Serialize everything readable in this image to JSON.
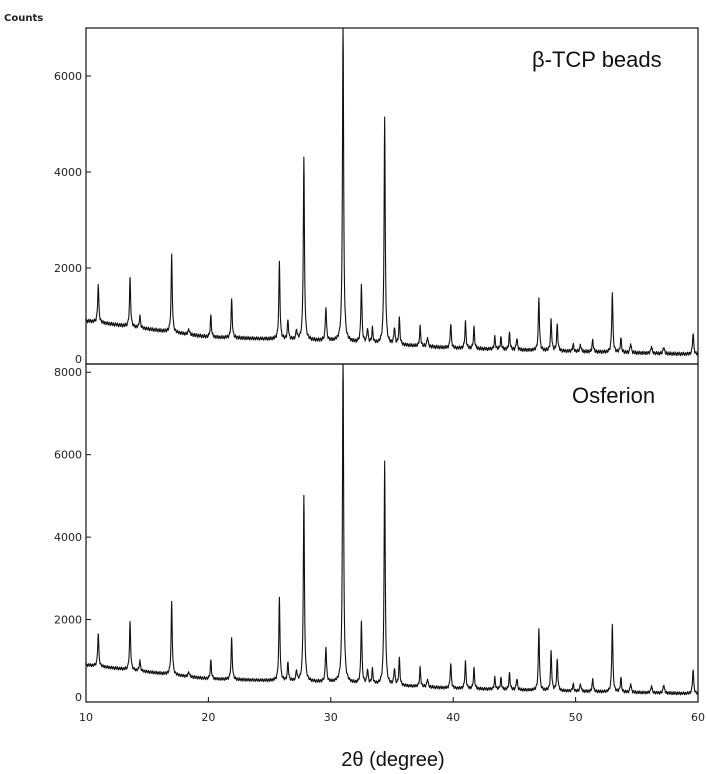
{
  "chart_data": {
    "type": "line",
    "ylabel": "Counts",
    "xlabel": "2θ (degree)",
    "xlim": [
      10,
      60
    ],
    "x_ticks": [
      10,
      20,
      30,
      40,
      50,
      60
    ],
    "panels": [
      {
        "title": "β-TCP beads",
        "ylim": [
          0,
          7000
        ],
        "y_ticks": [
          0,
          2000,
          4000,
          6000
        ],
        "baseline": [
          [
            10,
            900
          ],
          [
            20,
            560
          ],
          [
            30,
            480
          ],
          [
            40,
            330
          ],
          [
            50,
            260
          ],
          [
            60,
            200
          ]
        ],
        "peaks": [
          [
            11.0,
            800
          ],
          [
            13.6,
            1000
          ],
          [
            14.4,
            250
          ],
          [
            17.0,
            1600
          ],
          [
            18.4,
            120
          ],
          [
            20.2,
            450
          ],
          [
            21.9,
            800
          ],
          [
            25.8,
            1600
          ],
          [
            26.5,
            400
          ],
          [
            27.2,
            200
          ],
          [
            27.8,
            3800
          ],
          [
            29.6,
            700
          ],
          [
            31.0,
            6800
          ],
          [
            32.5,
            1200
          ],
          [
            33.0,
            300
          ],
          [
            33.4,
            300
          ],
          [
            34.4,
            4700
          ],
          [
            35.2,
            350
          ],
          [
            35.6,
            550
          ],
          [
            37.3,
            400
          ],
          [
            37.9,
            200
          ],
          [
            39.8,
            500
          ],
          [
            41.0,
            550
          ],
          [
            41.7,
            450
          ],
          [
            43.4,
            250
          ],
          [
            43.9,
            250
          ],
          [
            44.6,
            350
          ],
          [
            45.2,
            250
          ],
          [
            47.0,
            1100
          ],
          [
            48.0,
            650
          ],
          [
            48.5,
            550
          ],
          [
            49.8,
            150
          ],
          [
            50.4,
            150
          ],
          [
            51.4,
            250
          ],
          [
            53.0,
            1250
          ],
          [
            53.7,
            300
          ],
          [
            54.5,
            200
          ],
          [
            56.2,
            150
          ],
          [
            57.2,
            150
          ],
          [
            59.6,
            450
          ]
        ]
      },
      {
        "title": "Osferion",
        "ylim": [
          0,
          8200
        ],
        "y_ticks": [
          0,
          2000,
          4000,
          6000,
          8000
        ],
        "baseline": [
          [
            10,
            900
          ],
          [
            20,
            560
          ],
          [
            30,
            480
          ],
          [
            40,
            330
          ],
          [
            50,
            260
          ],
          [
            60,
            200
          ]
        ],
        "peaks": [
          [
            11.0,
            800
          ],
          [
            13.6,
            1150
          ],
          [
            14.4,
            250
          ],
          [
            17.0,
            1750
          ],
          [
            18.4,
            120
          ],
          [
            20.2,
            450
          ],
          [
            21.9,
            1000
          ],
          [
            25.8,
            2000
          ],
          [
            26.5,
            450
          ],
          [
            27.2,
            250
          ],
          [
            27.8,
            4500
          ],
          [
            29.6,
            850
          ],
          [
            31.0,
            8200
          ],
          [
            32.5,
            1500
          ],
          [
            33.0,
            350
          ],
          [
            33.4,
            350
          ],
          [
            34.4,
            5400
          ],
          [
            35.2,
            400
          ],
          [
            35.6,
            650
          ],
          [
            37.3,
            450
          ],
          [
            37.9,
            200
          ],
          [
            39.8,
            600
          ],
          [
            41.0,
            650
          ],
          [
            41.7,
            500
          ],
          [
            43.4,
            280
          ],
          [
            43.9,
            280
          ],
          [
            44.6,
            400
          ],
          [
            45.2,
            280
          ],
          [
            47.0,
            1500
          ],
          [
            48.0,
            950
          ],
          [
            48.5,
            750
          ],
          [
            49.8,
            180
          ],
          [
            50.4,
            180
          ],
          [
            51.4,
            300
          ],
          [
            53.0,
            1650
          ],
          [
            53.7,
            350
          ],
          [
            54.5,
            220
          ],
          [
            56.2,
            180
          ],
          [
            57.2,
            220
          ],
          [
            59.6,
            600
          ]
        ]
      }
    ]
  }
}
